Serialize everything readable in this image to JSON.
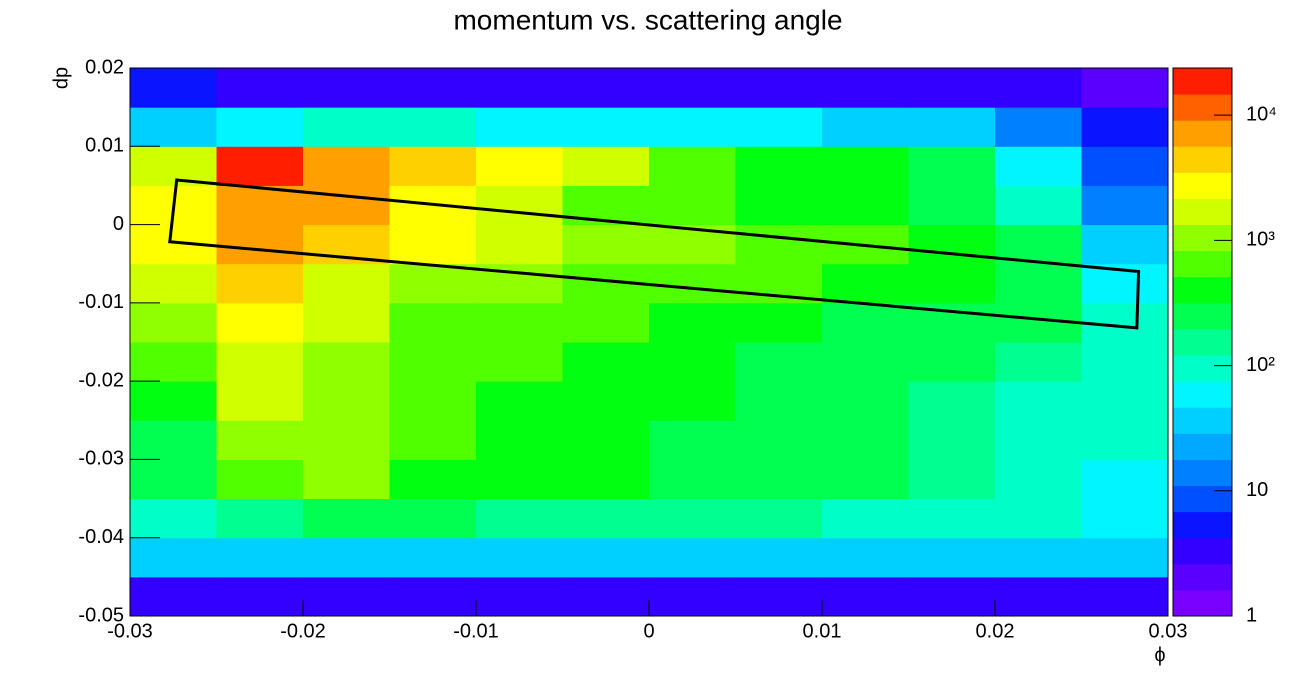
{
  "chart_data": {
    "type": "heatmap",
    "title": "momentum vs. scattering angle",
    "x_label": "ϕ",
    "y_label": "dp",
    "xlim": [
      -0.03,
      0.03
    ],
    "ylim": [
      -0.05,
      0.02
    ],
    "xticks": [
      -0.03,
      -0.02,
      -0.01,
      0,
      0.01,
      0.02,
      0.03
    ],
    "yticks": [
      -0.05,
      -0.04,
      -0.03,
      -0.02,
      -0.01,
      0,
      0.01,
      0.02
    ],
    "xbins": [
      -0.03,
      -0.025,
      -0.02,
      -0.015,
      -0.01,
      -0.005,
      0,
      0.005,
      0.01,
      0.015,
      0.02,
      0.025,
      0.03
    ],
    "ybins": [
      -0.05,
      -0.045,
      -0.04,
      -0.035,
      -0.03,
      -0.025,
      -0.02,
      -0.015,
      -0.01,
      -0.005,
      0,
      0.005,
      0.01,
      0.015,
      0.02
    ],
    "values": [
      [
        3,
        3,
        3,
        3,
        3,
        3,
        3,
        3,
        3,
        3,
        3,
        3
      ],
      [
        30,
        30,
        30,
        30,
        30,
        30,
        30,
        30,
        30,
        30,
        30,
        30
      ],
      [
        100,
        150,
        200,
        200,
        180,
        160,
        150,
        130,
        120,
        100,
        90,
        60
      ],
      [
        200,
        600,
        1200,
        500,
        400,
        350,
        300,
        250,
        200,
        150,
        120,
        70
      ],
      [
        300,
        1000,
        1200,
        600,
        500,
        400,
        300,
        250,
        200,
        150,
        120,
        80
      ],
      [
        500,
        1500,
        1000,
        700,
        500,
        400,
        350,
        300,
        200,
        150,
        120,
        80
      ],
      [
        800,
        2000,
        1200,
        700,
        600,
        500,
        400,
        300,
        250,
        200,
        150,
        80
      ],
      [
        1200,
        3000,
        1500,
        800,
        700,
        600,
        500,
        400,
        300,
        250,
        200,
        80
      ],
      [
        1500,
        4000,
        2000,
        1200,
        900,
        800,
        700,
        600,
        500,
        400,
        300,
        60
      ],
      [
        2500,
        6000,
        4000,
        2500,
        1500,
        1200,
        1000,
        800,
        600,
        500,
        300,
        30
      ],
      [
        3000,
        8000,
        6000,
        3000,
        1500,
        800,
        600,
        500,
        400,
        300,
        80,
        15
      ],
      [
        2000,
        15000,
        8000,
        4000,
        3000,
        1500,
        800,
        500,
        400,
        300,
        50,
        10
      ],
      [
        30,
        60,
        80,
        80,
        70,
        60,
        50,
        50,
        40,
        30,
        15,
        5
      ],
      [
        5,
        4,
        3,
        3,
        3,
        3,
        3,
        3,
        3,
        3,
        3,
        2
      ]
    ],
    "zlim": [
      1,
      23800
    ],
    "zlog": true,
    "zticks": [
      1,
      10,
      {
        "value": 100,
        "label": "10²"
      },
      {
        "value": 1000,
        "label": "10³"
      },
      {
        "value": 10000,
        "label": "10⁴"
      }
    ],
    "palette": [
      "#7a00ff",
      "#5a00ff",
      "#3300ff",
      "#0a14ff",
      "#0050ff",
      "#0080ff",
      "#00a8ff",
      "#00d0ff",
      "#00f5ff",
      "#00ffc8",
      "#00ff90",
      "#00ff50",
      "#00ff10",
      "#50ff00",
      "#90ff00",
      "#d0ff00",
      "#ffff00",
      "#ffd000",
      "#ffa000",
      "#ff6000",
      "#ff1e00"
    ],
    "cut": {
      "x": [
        -0.0273,
        0.0283,
        0.0282,
        -0.0277
      ],
      "y": [
        0.0057,
        -0.006,
        -0.0132,
        -0.0022
      ]
    }
  }
}
